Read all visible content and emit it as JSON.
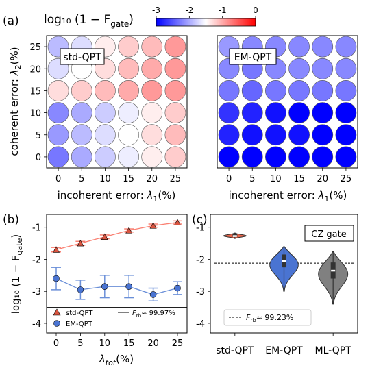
{
  "panel_labels": {
    "a": "(a)",
    "b": "(b)",
    "c": "(c)"
  },
  "colorbar": {
    "label": "log₁₀ (1 − F",
    "label_sub": "gate",
    "label_close": ")",
    "ticks": [
      "-3",
      "-2",
      "-1",
      "0"
    ],
    "range": [
      -3,
      0
    ],
    "colors": {
      "low": "#0000ff",
      "mid": "#ffffff",
      "high": "#ff0000"
    }
  },
  "chart_data": [
    {
      "type": "heatmap",
      "id": "std",
      "inset_label": "std-QPT",
      "xlabel_text": "incoherent error: ",
      "xlabel_sym": "λ",
      "xlabel_sub": "1",
      "xlabel_unit": "(%)",
      "ylabel_text": "coherent error: ",
      "ylabel_sym": "λ",
      "ylabel_sub": "2",
      "ylabel_unit": "(%)",
      "x": [
        0,
        5,
        10,
        15,
        20,
        25
      ],
      "y": [
        0,
        5,
        10,
        15,
        20,
        25
      ],
      "values_by_row_y": [
        [
          -2.3,
          -2.0,
          -1.8,
          -1.6,
          -1.4,
          -1.2
        ],
        [
          -2.1,
          -1.9,
          -1.7,
          -1.5,
          -1.3,
          -1.1
        ],
        [
          -2.2,
          -2.0,
          -1.8,
          -1.6,
          -1.4,
          -1.2
        ],
        [
          -1.3,
          -1.2,
          -1.1,
          -1.0,
          -0.9,
          -0.9
        ],
        [
          -1.7,
          -1.5,
          -1.3,
          -1.1,
          -1.0,
          -0.9
        ],
        [
          -1.9,
          -1.7,
          -1.4,
          -1.2,
          -1.1,
          -0.9
        ]
      ]
    },
    {
      "type": "heatmap",
      "id": "em",
      "inset_label": "EM-QPT",
      "xlabel_text": "incoherent error: ",
      "xlabel_sym": "λ",
      "xlabel_sub": "1",
      "xlabel_unit": "(%)",
      "x": [
        0,
        5,
        10,
        15,
        20,
        25
      ],
      "y": [
        0,
        5,
        10,
        15,
        20,
        25
      ],
      "values_by_row_y": [
        [
          -3.0,
          -3.0,
          -3.0,
          -3.0,
          -3.0,
          -3.0
        ],
        [
          -2.8,
          -2.9,
          -2.9,
          -2.9,
          -3.0,
          -3.0
        ],
        [
          -2.7,
          -2.8,
          -2.9,
          -3.0,
          -3.0,
          -3.0
        ],
        [
          -2.3,
          -2.4,
          -2.3,
          -2.3,
          -2.3,
          -2.3
        ],
        [
          -2.2,
          -2.3,
          -2.2,
          -2.2,
          -2.2,
          -2.2
        ],
        [
          -2.1,
          -2.2,
          -2.2,
          -2.2,
          -2.2,
          -2.2
        ]
      ]
    },
    {
      "type": "line",
      "id": "b",
      "xlabel_sym": "λ",
      "xlabel_sub": "tot",
      "xlabel_unit": "(%)",
      "ylabel_main": "log₁₀ (1 − F",
      "ylabel_sub": "gate",
      "ylabel_close": ")",
      "x": [
        0,
        5,
        10,
        15,
        20,
        25
      ],
      "xticks": [
        "0",
        "5",
        "10",
        "15",
        "20",
        "25"
      ],
      "ylim": [
        -4.3,
        -0.6
      ],
      "yticks": [
        "-1",
        "-2",
        "-3",
        "-4"
      ],
      "separator_y": -3.5,
      "series": [
        {
          "name": "std-QPT",
          "marker": "triangle",
          "color": "#fa8072",
          "marker_color": "#d9543f",
          "values": [
            -1.7,
            -1.5,
            -1.3,
            -1.1,
            -0.95,
            -0.85
          ],
          "err": [
            0.07,
            0.06,
            0.06,
            0.05,
            0.05,
            0.05
          ]
        },
        {
          "name": "EM-QPT",
          "marker": "circle",
          "color": "#6a8fd8",
          "marker_color": "#4a74d2",
          "values": [
            -2.6,
            -2.95,
            -2.85,
            -2.85,
            -3.1,
            -2.9
          ],
          "err": [
            0.35,
            0.3,
            0.35,
            0.35,
            0.2,
            0.2
          ]
        }
      ],
      "legend_ref_text": "F",
      "legend_ref_sub": "rb",
      "legend_ref_value": "≈ 99.97%"
    },
    {
      "type": "violin",
      "id": "c",
      "categories": [
        "std-QPT",
        "EM-QPT",
        "ML-QPT"
      ],
      "medians": [
        -1.27,
        -2.05,
        -2.35
      ],
      "q1": [
        -1.3,
        -2.25,
        -2.6
      ],
      "q3": [
        -1.22,
        -1.85,
        -2.1
      ],
      "mins": [
        -1.35,
        -3.0,
        -3.4
      ],
      "maxs": [
        -1.18,
        -1.6,
        -1.75
      ],
      "fill_colors": [
        "#e8654a",
        "#4a74d2",
        "#808080"
      ],
      "ylim": [
        -4.3,
        -0.6
      ],
      "yticks": [
        "-1",
        "-2",
        "-3",
        "-4"
      ],
      "reference_line": -2.12,
      "box_label": "CZ gate",
      "legend_ref_text": "F",
      "legend_ref_sub": "rb",
      "legend_ref_value": "≈ 99.23%"
    }
  ]
}
